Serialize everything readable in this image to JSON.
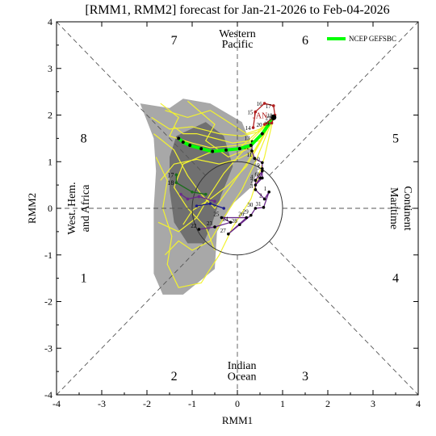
{
  "figure": {
    "title": "[RMM1, RMM2] forecast for Jan-21-2026 to Feb-04-2026"
  },
  "chart_data": {
    "type": "scatter",
    "title": "[RMM1, RMM2] forecast for Jan-21-2026 to Feb-04-2026",
    "xlabel": "RMM1",
    "ylabel": "RMM2",
    "xlim": [
      -4,
      4
    ],
    "ylim": [
      -4,
      4
    ],
    "xticks": [
      "-4",
      "-3",
      "-2",
      "-1",
      "0",
      "1",
      "2",
      "3",
      "4"
    ],
    "yticks": [
      "-4",
      "-3",
      "-2",
      "-1",
      "0",
      "1",
      "2",
      "3",
      "4"
    ],
    "phase_numbers": [
      {
        "label": "1",
        "x": -3.4,
        "y": -1.5
      },
      {
        "label": "2",
        "x": -1.4,
        "y": -3.6
      },
      {
        "label": "3",
        "x": 1.5,
        "y": -3.6
      },
      {
        "label": "4",
        "x": 3.5,
        "y": -1.5
      },
      {
        "label": "5",
        "x": 3.5,
        "y": 1.5
      },
      {
        "label": "6",
        "x": 1.5,
        "y": 3.6
      },
      {
        "label": "7",
        "x": -1.4,
        "y": 3.6
      },
      {
        "label": "8",
        "x": -3.4,
        "y": 1.5
      }
    ],
    "region_labels": {
      "top": [
        "Western",
        "Pacific"
      ],
      "bottom": [
        "Indian",
        "Ocean"
      ],
      "left": [
        "West. Hem.",
        "and Africa"
      ],
      "right": [
        "Maritime",
        "Continent"
      ]
    },
    "legend": {
      "label": "NCEP GEFSBC",
      "color": "#00ff00",
      "placement": "top-right"
    },
    "observed_label": "JAN",
    "unit_circle_radius": 1,
    "observed": {
      "name": "JAN",
      "color": "#b02020",
      "points": [
        {
          "label": "14",
          "x": 0.35,
          "y": 1.73
        },
        {
          "label": "15",
          "x": 0.4,
          "y": 2.07
        },
        {
          "label": "16",
          "x": 0.6,
          "y": 2.25
        },
        {
          "label": "17",
          "x": 0.8,
          "y": 2.2
        },
        {
          "label": "18",
          "x": 0.83,
          "y": 2.0
        },
        {
          "label": "19",
          "x": 0.76,
          "y": 1.83
        },
        {
          "label": "20",
          "x": 0.6,
          "y": 1.8
        },
        {
          "label": "21",
          "x": 0.8,
          "y": 1.95
        }
      ]
    },
    "earlier_path": {
      "color": "#6a2a8a",
      "points": [
        {
          "label": "22",
          "x": -0.85,
          "y": -0.45
        },
        {
          "label": "23",
          "x": -0.5,
          "y": -0.4
        },
        {
          "label": "24",
          "x": -0.15,
          "y": -0.3
        },
        {
          "label": "25",
          "x": -0.35,
          "y": -0.2
        },
        {
          "label": "26",
          "x": 0.2,
          "y": -0.2
        },
        {
          "label": "27",
          "x": -0.2,
          "y": -0.55
        },
        {
          "label": "28",
          "x": 0.05,
          "y": -0.35
        },
        {
          "label": "29",
          "x": 0.3,
          "y": -0.15
        },
        {
          "label": "30",
          "x": 0.4,
          "y": 0.0
        },
        {
          "label": "31",
          "x": 0.58,
          "y": 0.02
        },
        {
          "label": "1",
          "x": 0.7,
          "y": 0.35
        },
        {
          "label": "2",
          "x": 0.6,
          "y": 0.2
        },
        {
          "label": "3",
          "x": 0.4,
          "y": 0.4
        },
        {
          "label": "4",
          "x": 0.4,
          "y": 0.6
        },
        {
          "label": "5",
          "x": 0.55,
          "y": 0.8
        },
        {
          "label": "6",
          "x": 0.5,
          "y": 0.65
        },
        {
          "label": "7",
          "x": 0.4,
          "y": 0.5
        },
        {
          "label": "8",
          "x": 0.55,
          "y": 0.65
        },
        {
          "label": "9",
          "x": 0.55,
          "y": 0.85
        },
        {
          "label": "10",
          "x": 0.55,
          "y": 0.98
        },
        {
          "label": "11",
          "x": 0.38,
          "y": 1.07
        },
        {
          "label": "12",
          "x": 0.32,
          "y": 1.23
        },
        {
          "label": "13",
          "x": 0.33,
          "y": 1.43
        }
      ]
    },
    "ensemble_mean": {
      "name": "NCEP GEFSBC",
      "color": "#00ff00",
      "points": [
        {
          "x": 0.8,
          "y": 1.95
        },
        {
          "x": 0.55,
          "y": 1.6
        },
        {
          "x": 0.3,
          "y": 1.35
        },
        {
          "x": 0.05,
          "y": 1.28
        },
        {
          "x": -0.25,
          "y": 1.25
        },
        {
          "x": -0.55,
          "y": 1.22
        },
        {
          "x": -0.8,
          "y": 1.28
        },
        {
          "x": -1.05,
          "y": 1.35
        },
        {
          "x": -1.2,
          "y": 1.42
        },
        {
          "x": -1.3,
          "y": 1.5
        }
      ]
    },
    "other_members": [
      {
        "name": "",
        "color": "#1a6e1a",
        "points": [
          {
            "label": "17",
            "x": -1.35,
            "y": 0.72
          },
          {
            "label": "18",
            "x": -1.35,
            "y": 0.55
          },
          {
            "label": "",
            "x": -1.0,
            "y": 0.35
          },
          {
            "label": "",
            "x": -0.7,
            "y": 0.3
          }
        ]
      },
      {
        "name": "",
        "color": "#6a2a8a",
        "points": [
          {
            "label": "",
            "x": -1.25,
            "y": 0.3
          },
          {
            "label": "",
            "x": -1.1,
            "y": 0.2
          },
          {
            "label": "",
            "x": -0.85,
            "y": 0.25
          },
          {
            "label": "",
            "x": -0.5,
            "y": 0.15
          }
        ]
      },
      {
        "name": "",
        "color": "#1a1a8a",
        "points": [
          {
            "label": "",
            "x": -0.9,
            "y": 0.05
          },
          {
            "label": "",
            "x": -0.6,
            "y": 0.1
          },
          {
            "label": "",
            "x": -0.3,
            "y": 0.0
          }
        ]
      }
    ],
    "spread_outer": [
      [
        -2.15,
        2.25
      ],
      [
        -1.5,
        2.15
      ],
      [
        -1.2,
        2.35
      ],
      [
        -0.6,
        2.25
      ],
      [
        -0.25,
        2.05
      ],
      [
        0.1,
        1.85
      ],
      [
        0.25,
        1.5
      ],
      [
        0.35,
        1.2
      ],
      [
        0.45,
        0.8
      ],
      [
        0.3,
        0.45
      ],
      [
        -0.1,
        0.1
      ],
      [
        -0.45,
        -0.5
      ],
      [
        -0.5,
        -1.3
      ],
      [
        -1.2,
        -1.85
      ],
      [
        -1.65,
        -1.85
      ],
      [
        -1.85,
        -1.4
      ],
      [
        -1.85,
        -0.8
      ],
      [
        -1.85,
        0.0
      ],
      [
        -1.8,
        0.8
      ],
      [
        -1.85,
        1.5
      ]
    ],
    "spread_inner": [
      [
        -1.35,
        1.55
      ],
      [
        -0.7,
        1.85
      ],
      [
        -0.3,
        1.55
      ],
      [
        -0.1,
        0.9
      ],
      [
        -0.35,
        0.3
      ],
      [
        -0.55,
        -0.3
      ],
      [
        -0.75,
        -0.75
      ],
      [
        -1.1,
        -0.75
      ],
      [
        -1.4,
        -0.3
      ],
      [
        -1.5,
        0.4
      ],
      [
        -1.5,
        1.1
      ]
    ],
    "members": [
      [
        [
          -1.6,
          2.1
        ],
        [
          -1.1,
          1.95
        ],
        [
          -0.6,
          2.1
        ],
        [
          -0.2,
          1.85
        ],
        [
          0.2,
          1.6
        ],
        [
          0.5,
          1.7
        ],
        [
          0.8,
          1.95
        ]
      ],
      [
        [
          -1.9,
          1.95
        ],
        [
          -1.5,
          1.7
        ],
        [
          -1.0,
          1.75
        ],
        [
          -0.4,
          1.6
        ],
        [
          0.1,
          1.55
        ],
        [
          0.5,
          1.65
        ],
        [
          0.8,
          1.95
        ]
      ],
      [
        [
          -1.7,
          2.25
        ],
        [
          -1.3,
          1.95
        ],
        [
          -1.5,
          1.55
        ],
        [
          -1.0,
          1.4
        ],
        [
          -0.6,
          1.3
        ],
        [
          0.0,
          1.35
        ],
        [
          0.5,
          1.45
        ],
        [
          0.8,
          1.95
        ]
      ],
      [
        [
          -1.8,
          1.1
        ],
        [
          -1.55,
          0.6
        ],
        [
          -1.65,
          0.0
        ],
        [
          -1.45,
          -0.6
        ],
        [
          -1.55,
          -1.2
        ],
        [
          -1.3,
          -1.7
        ],
        [
          -0.8,
          -1.6
        ],
        [
          -0.4,
          -1.0
        ],
        [
          -0.1,
          -0.4
        ],
        [
          0.3,
          0.2
        ],
        [
          0.6,
          1.1
        ],
        [
          0.8,
          1.95
        ]
      ],
      [
        [
          -1.2,
          -0.35
        ],
        [
          -1.0,
          -0.05
        ],
        [
          -0.6,
          0.2
        ],
        [
          -0.2,
          0.5
        ],
        [
          0.2,
          0.9
        ],
        [
          0.5,
          1.4
        ],
        [
          0.8,
          1.95
        ]
      ],
      [
        [
          -1.7,
          0.6
        ],
        [
          -1.4,
          0.95
        ],
        [
          -0.9,
          1.05
        ],
        [
          -0.4,
          0.95
        ],
        [
          0.0,
          1.05
        ],
        [
          0.4,
          1.25
        ],
        [
          0.8,
          1.95
        ]
      ],
      [
        [
          -0.5,
          -0.9
        ],
        [
          -0.7,
          -0.4
        ],
        [
          -1.1,
          0.0
        ],
        [
          -1.4,
          0.45
        ],
        [
          -1.2,
          0.95
        ],
        [
          -0.6,
          1.2
        ],
        [
          0.0,
          1.25
        ],
        [
          0.8,
          1.95
        ]
      ],
      [
        [
          -1.75,
          -0.3
        ],
        [
          -1.3,
          -0.5
        ],
        [
          -0.9,
          -0.2
        ],
        [
          -0.6,
          0.3
        ],
        [
          -0.3,
          0.75
        ],
        [
          0.1,
          1.2
        ],
        [
          0.5,
          1.55
        ],
        [
          0.8,
          1.95
        ]
      ],
      [
        [
          -1.1,
          2.3
        ],
        [
          -0.8,
          2.05
        ],
        [
          -0.5,
          1.8
        ],
        [
          -0.7,
          1.45
        ],
        [
          -0.2,
          1.1
        ],
        [
          0.3,
          1.3
        ],
        [
          0.8,
          1.95
        ]
      ],
      [
        [
          -1.85,
          1.6
        ],
        [
          -1.4,
          1.25
        ],
        [
          -1.1,
          0.7
        ],
        [
          -0.8,
          0.3
        ],
        [
          -0.5,
          0.0
        ],
        [
          -0.2,
          0.4
        ],
        [
          0.2,
          0.95
        ],
        [
          0.8,
          1.95
        ]
      ],
      [
        [
          -1.6,
          -1.0
        ],
        [
          -1.3,
          -0.7
        ],
        [
          -1.0,
          -0.9
        ],
        [
          -0.6,
          -0.7
        ],
        [
          -0.3,
          -0.2
        ],
        [
          0.1,
          0.4
        ],
        [
          0.4,
          1.0
        ],
        [
          0.8,
          1.95
        ]
      ],
      [
        [
          -1.4,
          1.75
        ],
        [
          -1.2,
          1.6
        ],
        [
          -0.9,
          1.6
        ],
        [
          -0.5,
          1.5
        ],
        [
          -0.1,
          1.4
        ],
        [
          0.3,
          1.45
        ],
        [
          0.8,
          1.95
        ]
      ]
    ]
  }
}
